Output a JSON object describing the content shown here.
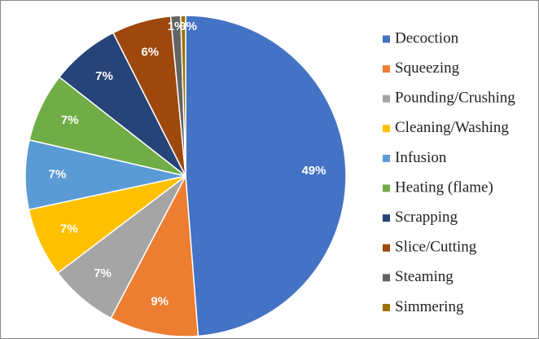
{
  "chart_data": {
    "type": "pie",
    "categories": [
      "Decoction",
      "Squeezing",
      "Pounding/Crushing",
      "Cleaning/Washing",
      "Infusion",
      "Heating (flame)",
      "Scrapping",
      "Slice/Cutting",
      "Steaming",
      "Simmering"
    ],
    "values": [
      49,
      9,
      7,
      7,
      7,
      7,
      7,
      6,
      1,
      0.5
    ],
    "value_labels": [
      "49%",
      "9%",
      "7%",
      "7%",
      "7%",
      "7%",
      "7%",
      "6%",
      "1%",
      "0%"
    ],
    "colors": [
      "#4472c4",
      "#ed7d31",
      "#a5a5a5",
      "#ffc000",
      "#5b9bd5",
      "#70ad47",
      "#264478",
      "#9e480e",
      "#636363",
      "#997300"
    ],
    "legend": "right"
  }
}
